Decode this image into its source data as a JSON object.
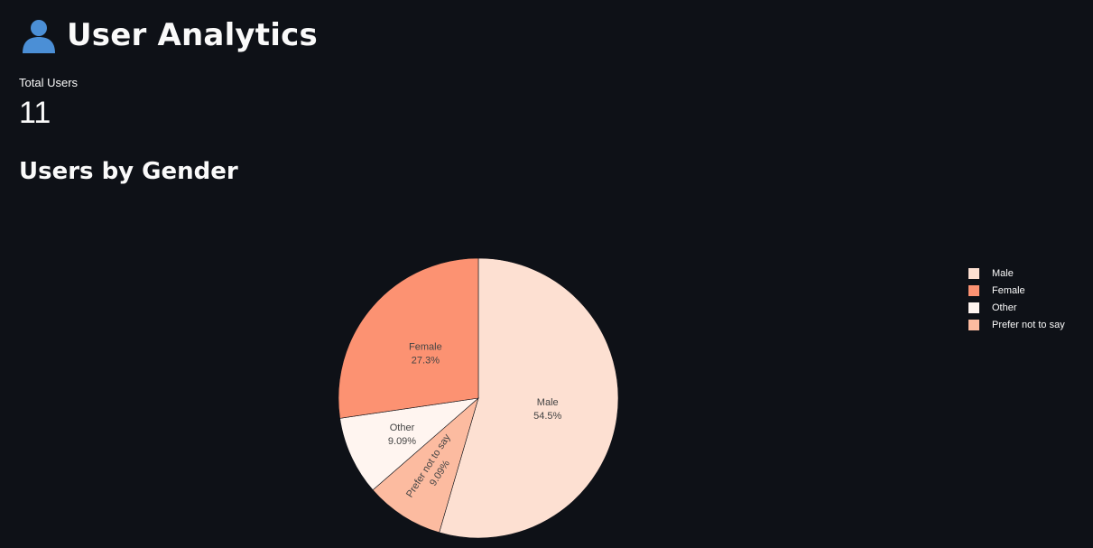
{
  "header": {
    "icon": "user-icon",
    "title": "User Analytics"
  },
  "metric": {
    "label": "Total Users",
    "value": "11"
  },
  "section": {
    "title": "Users by Gender"
  },
  "colors": {
    "background": "#0e1117",
    "text": "#fafafa",
    "slice_label": "#444444",
    "slice_border": "#0e1117"
  },
  "chart_data": {
    "type": "pie",
    "title": "",
    "legend_position": "right",
    "slices": [
      {
        "label": "Male",
        "value": 54.5,
        "percent_label": "54.5%",
        "color": "#fde0d2"
      },
      {
        "label": "Prefer not to say",
        "value": 9.09,
        "percent_label": "9.09%",
        "color": "#fcbba0"
      },
      {
        "label": "Other",
        "value": 9.09,
        "percent_label": "9.09%",
        "color": "#fff5f0"
      },
      {
        "label": "Female",
        "value": 27.3,
        "percent_label": "27.3%",
        "color": "#fc9272"
      }
    ],
    "legend_order": [
      "Male",
      "Female",
      "Other",
      "Prefer not to say"
    ]
  }
}
